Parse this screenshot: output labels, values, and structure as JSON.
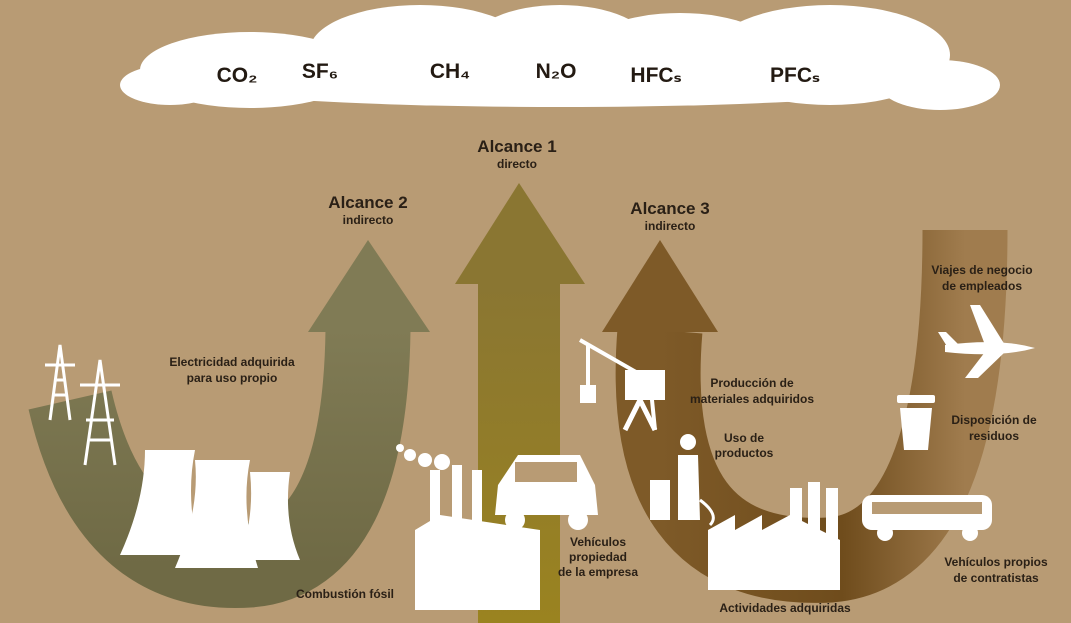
{
  "gases": [
    "CO₂",
    "SF₆",
    "CH₄",
    "N₂O",
    "HFCₛ",
    "PFCₛ"
  ],
  "scopes": [
    {
      "title": "Alcance 1",
      "subtitle": "directo"
    },
    {
      "title": "Alcance 2",
      "subtitle": "indirecto"
    },
    {
      "title": "Alcance 3",
      "subtitle": "indirecto"
    }
  ],
  "labels": {
    "electricity": [
      "Electricidad adquirida",
      "para uso propio"
    ],
    "combustion": [
      "Combustión fósil"
    ],
    "company_vehicles": [
      "Vehículos",
      "propiedad",
      "de la empresa"
    ],
    "materials": [
      "Producción de",
      "materiales adquiridos"
    ],
    "product_use": [
      "Uso de",
      "productos"
    ],
    "activities": [
      "Actividades adquiridas"
    ],
    "travel": [
      "Viajes de negocio",
      "de empleados"
    ],
    "waste": [
      "Disposición de",
      "residuos"
    ],
    "contractor_vehicles": [
      "Vehículos propios",
      "de contratistas"
    ]
  }
}
